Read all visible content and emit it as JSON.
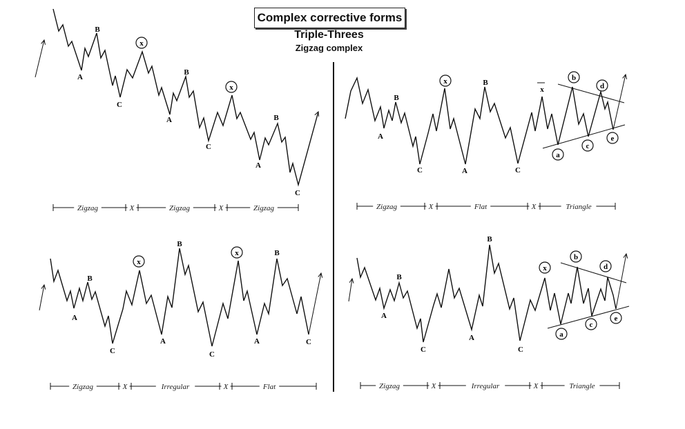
{
  "title": "Complex corrective forms",
  "subtitle": "Triple-Threes",
  "subsubtitle": "Zigzag complex",
  "panels": [
    {
      "wave_labels": [
        "A",
        "B",
        "C",
        "A",
        "B",
        "C",
        "A",
        "B",
        "C"
      ],
      "circled_labels": [
        "x",
        "x"
      ],
      "structure": [
        "Zigzag",
        "X",
        "Zigzag",
        "X",
        "Zigzag"
      ]
    },
    {
      "wave_labels": [
        "A",
        "B",
        "C",
        "A",
        "B",
        "C"
      ],
      "circled_labels": [
        "x",
        "x",
        "a",
        "b",
        "c",
        "d",
        "e"
      ],
      "structure": [
        "Zigzag",
        "X",
        "Flat",
        "X",
        "Triangle"
      ]
    },
    {
      "wave_labels": [
        "A",
        "B",
        "C",
        "A",
        "B",
        "C",
        "A",
        "B",
        "C"
      ],
      "circled_labels": [
        "x",
        "x"
      ],
      "structure": [
        "Zigzag",
        "X",
        "Irregular",
        "X",
        "Flat"
      ]
    },
    {
      "wave_labels": [
        "A",
        "B",
        "C",
        "A",
        "B",
        "C"
      ],
      "circled_labels": [
        "x",
        "a",
        "b",
        "c",
        "d",
        "e"
      ],
      "structure": [
        "Zigzag",
        "X",
        "Irregular",
        "X",
        "Triangle"
      ]
    }
  ]
}
